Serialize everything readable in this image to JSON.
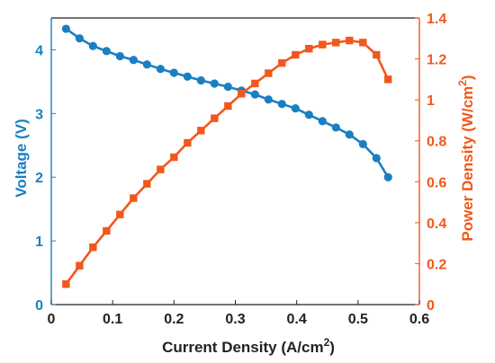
{
  "chart_data": {
    "type": "line",
    "xlabel": "Current Density (A/cm",
    "xlabel_sup": "2",
    "xlabel_end": ")",
    "ylabel_left": "Voltage (V)",
    "ylabel_right": "Power Density (W/cm",
    "ylabel_right_sup": "2",
    "ylabel_right_end": ")",
    "xlim": [
      0,
      0.6
    ],
    "ylim_left": [
      0,
      4.5
    ],
    "ylim_right": [
      0,
      1.4
    ],
    "x_ticks": [
      "0",
      "0.1",
      "0.2",
      "0.3",
      "0.4",
      "0.5",
      "0.6"
    ],
    "y_left_ticks": [
      "0",
      "1",
      "2",
      "3",
      "4"
    ],
    "y_right_ticks": [
      "0",
      "0.2",
      "0.4",
      "0.6",
      "0.8",
      "1",
      "1.2",
      "1.4"
    ],
    "grid": false,
    "colors": {
      "left": "#1a7fc1",
      "right": "#f2571b"
    },
    "series": [
      {
        "axis": "left",
        "marker": "circle",
        "x": [
          0.024,
          0.046,
          0.068,
          0.09,
          0.112,
          0.134,
          0.156,
          0.178,
          0.2,
          0.222,
          0.244,
          0.266,
          0.288,
          0.31,
          0.332,
          0.354,
          0.376,
          0.398,
          0.42,
          0.442,
          0.464,
          0.486,
          0.508,
          0.53,
          0.549
        ],
        "values": [
          4.33,
          4.18,
          4.06,
          3.98,
          3.9,
          3.84,
          3.77,
          3.7,
          3.64,
          3.58,
          3.52,
          3.47,
          3.42,
          3.36,
          3.3,
          3.22,
          3.15,
          3.08,
          2.98,
          2.88,
          2.78,
          2.67,
          2.52,
          2.3,
          2.0
        ]
      },
      {
        "axis": "right",
        "marker": "square",
        "x": [
          0.024,
          0.046,
          0.068,
          0.09,
          0.112,
          0.134,
          0.156,
          0.178,
          0.2,
          0.222,
          0.244,
          0.266,
          0.288,
          0.31,
          0.332,
          0.354,
          0.376,
          0.398,
          0.42,
          0.442,
          0.464,
          0.486,
          0.508,
          0.53,
          0.549
        ],
        "values": [
          0.1,
          0.19,
          0.28,
          0.36,
          0.44,
          0.52,
          0.59,
          0.66,
          0.72,
          0.79,
          0.85,
          0.91,
          0.97,
          1.03,
          1.08,
          1.13,
          1.18,
          1.22,
          1.25,
          1.27,
          1.28,
          1.29,
          1.28,
          1.22,
          1.1
        ]
      }
    ]
  }
}
